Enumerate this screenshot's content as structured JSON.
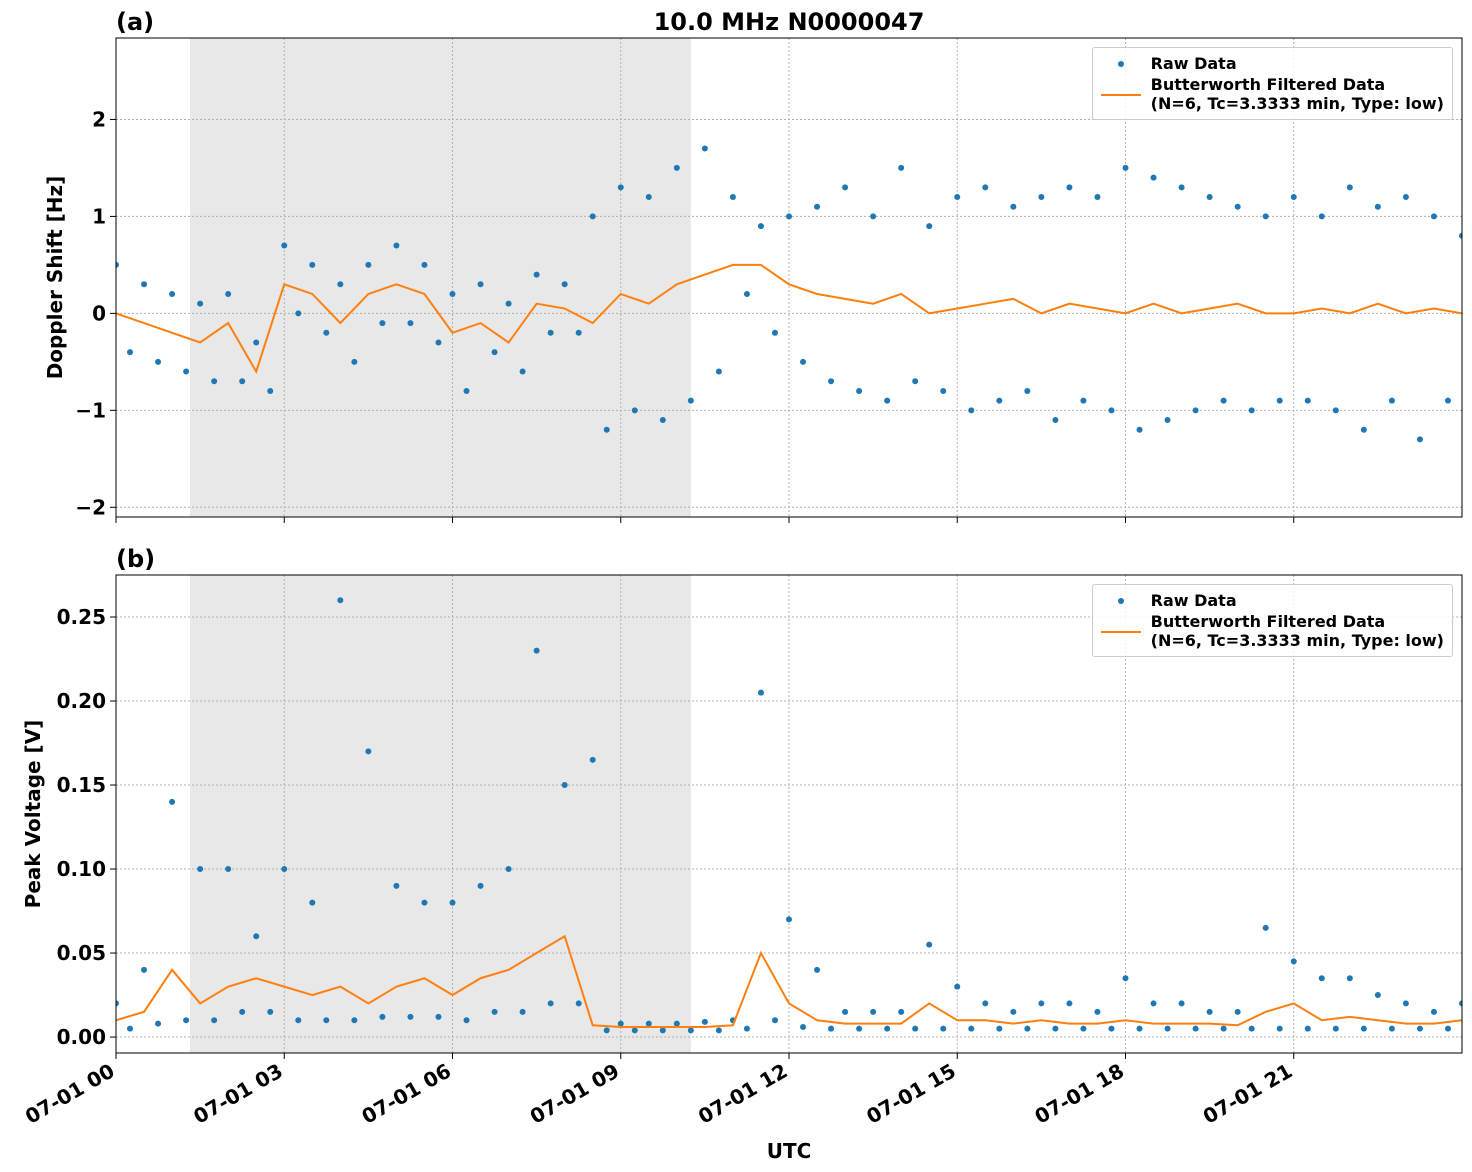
{
  "chart_data": [
    {
      "type": "line",
      "panel_label": "(a)",
      "title": "10.0 MHz N0000047",
      "ylabel": "Doppler Shift [Hz]",
      "xlim": [
        0,
        24
      ],
      "xticks": [
        0,
        3,
        6,
        9,
        12,
        15,
        18,
        21
      ],
      "show_xtick_labels": false,
      "ylim": [
        -2.1,
        2.84
      ],
      "yticks": [
        {
          "value": -2,
          "label": "−2"
        },
        {
          "value": -1,
          "label": "−1"
        },
        0,
        1,
        2
      ],
      "grid": true,
      "legend": "upper right",
      "shaded_xrange": [
        1.32,
        10.25
      ],
      "shade_color": "#e8e8e8",
      "series": [
        {
          "name": "Raw Data",
          "style": "dots",
          "color": "#1f77b4",
          "x": [
            0,
            0.25,
            0.5,
            0.75,
            1,
            1.25,
            1.5,
            1.75,
            2,
            2.25,
            2.5,
            2.75,
            3,
            3.25,
            3.5,
            3.75,
            4,
            4.25,
            4.5,
            4.75,
            5,
            5.25,
            5.5,
            5.75,
            6,
            6.25,
            6.5,
            6.75,
            7,
            7.25,
            7.5,
            7.75,
            8,
            8.25,
            8.5,
            8.75,
            9,
            9.25,
            9.5,
            9.75,
            10,
            10.25,
            10.5,
            10.75,
            11,
            11.25,
            11.5,
            11.75,
            12,
            12.25,
            12.5,
            12.75,
            13,
            13.25,
            13.5,
            13.75,
            14,
            14.25,
            14.5,
            14.75,
            15,
            15.25,
            15.5,
            15.75,
            16,
            16.25,
            16.5,
            16.75,
            17,
            17.25,
            17.5,
            17.75,
            18,
            18.25,
            18.5,
            18.75,
            19,
            19.25,
            19.5,
            19.75,
            20,
            20.25,
            20.5,
            20.75,
            21,
            21.25,
            21.5,
            21.75,
            22,
            22.25,
            22.5,
            22.75,
            23,
            23.25,
            23.5,
            23.75,
            24
          ],
          "values": [
            0.5,
            -0.4,
            0.3,
            -0.5,
            0.2,
            -0.6,
            0.1,
            -0.7,
            0.2,
            -0.7,
            -0.3,
            -0.8,
            0.7,
            0.0,
            0.5,
            -0.2,
            0.3,
            -0.5,
            0.5,
            -0.1,
            0.7,
            -0.1,
            0.5,
            -0.3,
            0.2,
            -0.8,
            0.3,
            -0.4,
            0.1,
            -0.6,
            0.4,
            -0.2,
            0.3,
            -0.2,
            1.0,
            -1.2,
            1.3,
            -1.0,
            1.2,
            -1.1,
            1.5,
            -0.9,
            1.7,
            -0.6,
            1.2,
            0.2,
            0.9,
            -0.2,
            1.0,
            -0.5,
            1.1,
            -0.7,
            1.3,
            -0.8,
            1.0,
            -0.9,
            1.5,
            -0.7,
            0.9,
            -0.8,
            1.2,
            -1.0,
            1.3,
            -0.9,
            1.1,
            -0.8,
            1.2,
            -1.1,
            1.3,
            -0.9,
            1.2,
            -1.0,
            1.5,
            -1.2,
            1.4,
            -1.1,
            1.3,
            -1.0,
            1.2,
            -0.9,
            1.1,
            -1.0,
            1.0,
            -0.9,
            1.2,
            -0.9,
            1.0,
            -1.0,
            1.3,
            -1.2,
            1.1,
            -0.9,
            1.2,
            -1.3,
            1.0,
            -0.9,
            0.8
          ]
        },
        {
          "name": "Butterworth Filtered Data\n(N=6, Tc=3.3333 min, Type: low)",
          "style": "line",
          "color": "#ff7f0e",
          "x": [
            0,
            0.5,
            1,
            1.5,
            2,
            2.5,
            3,
            3.5,
            4,
            4.5,
            5,
            5.5,
            6,
            6.5,
            7,
            7.5,
            8,
            8.5,
            9,
            9.5,
            10,
            10.5,
            11,
            11.5,
            12,
            12.5,
            13,
            13.5,
            14,
            14.5,
            15,
            15.5,
            16,
            16.5,
            17,
            17.5,
            18,
            18.5,
            19,
            19.5,
            20,
            20.5,
            21,
            21.5,
            22,
            22.5,
            23,
            23.5,
            24
          ],
          "values": [
            0.0,
            -0.1,
            -0.2,
            -0.3,
            -0.1,
            -0.6,
            0.3,
            0.2,
            -0.1,
            0.2,
            0.3,
            0.2,
            -0.2,
            -0.1,
            -0.3,
            0.1,
            0.05,
            -0.1,
            0.2,
            0.1,
            0.3,
            0.4,
            0.5,
            0.5,
            0.3,
            0.2,
            0.15,
            0.1,
            0.2,
            0.0,
            0.05,
            0.1,
            0.15,
            0.0,
            0.1,
            0.05,
            0.0,
            0.1,
            0.0,
            0.05,
            0.1,
            0.0,
            0.0,
            0.05,
            0.0,
            0.1,
            0.0,
            0.05,
            0.0
          ]
        }
      ]
    },
    {
      "type": "line",
      "panel_label": "(b)",
      "ylabel": "Peak Voltage [V]",
      "xlabel": "UTC",
      "xlim": [
        0,
        24
      ],
      "xticks": [
        {
          "value": 0,
          "label": "07-01 00"
        },
        {
          "value": 3,
          "label": "07-01 03"
        },
        {
          "value": 6,
          "label": "07-01 06"
        },
        {
          "value": 9,
          "label": "07-01 09"
        },
        {
          "value": 12,
          "label": "07-01 12"
        },
        {
          "value": 15,
          "label": "07-01 15"
        },
        {
          "value": 18,
          "label": "07-01 18"
        },
        {
          "value": 21,
          "label": "07-01 21"
        }
      ],
      "show_xtick_labels": true,
      "ylim": [
        -0.0095,
        0.275
      ],
      "yticks": [
        {
          "value": 0,
          "label": "0.00"
        },
        {
          "value": 0.05,
          "label": "0.05"
        },
        {
          "value": 0.1,
          "label": "0.10"
        },
        {
          "value": 0.15,
          "label": "0.15"
        },
        {
          "value": 0.2,
          "label": "0.20"
        },
        {
          "value": 0.25,
          "label": "0.25"
        }
      ],
      "grid": true,
      "legend": "upper right",
      "shaded_xrange": [
        1.32,
        10.25
      ],
      "shade_color": "#e8e8e8",
      "series": [
        {
          "name": "Raw Data",
          "style": "dots",
          "color": "#1f77b4",
          "x": [
            0,
            0.25,
            0.5,
            0.75,
            1,
            1.25,
            1.5,
            1.75,
            2,
            2.25,
            2.5,
            2.75,
            3,
            3.25,
            3.5,
            3.75,
            4,
            4.25,
            4.5,
            4.75,
            5,
            5.25,
            5.5,
            5.75,
            6,
            6.25,
            6.5,
            6.75,
            7,
            7.25,
            7.5,
            7.75,
            8,
            8.25,
            8.5,
            8.75,
            9,
            9.25,
            9.5,
            9.75,
            10,
            10.25,
            10.5,
            10.75,
            11,
            11.25,
            11.5,
            11.75,
            12,
            12.25,
            12.5,
            12.75,
            13,
            13.25,
            13.5,
            13.75,
            14,
            14.25,
            14.5,
            14.75,
            15,
            15.25,
            15.5,
            15.75,
            16,
            16.25,
            16.5,
            16.75,
            17,
            17.25,
            17.5,
            17.75,
            18,
            18.25,
            18.5,
            18.75,
            19,
            19.25,
            19.5,
            19.75,
            20,
            20.25,
            20.5,
            20.75,
            21,
            21.25,
            21.5,
            21.75,
            22,
            22.25,
            22.5,
            22.75,
            23,
            23.25,
            23.5,
            23.75,
            24
          ],
          "values": [
            0.02,
            0.005,
            0.04,
            0.008,
            0.14,
            0.01,
            0.1,
            0.01,
            0.1,
            0.015,
            0.06,
            0.015,
            0.1,
            0.01,
            0.08,
            0.01,
            0.26,
            0.01,
            0.17,
            0.012,
            0.09,
            0.012,
            0.08,
            0.012,
            0.08,
            0.01,
            0.09,
            0.015,
            0.1,
            0.015,
            0.23,
            0.02,
            0.15,
            0.02,
            0.165,
            0.004,
            0.008,
            0.004,
            0.008,
            0.004,
            0.008,
            0.004,
            0.009,
            0.004,
            0.01,
            0.005,
            0.205,
            0.01,
            0.07,
            0.006,
            0.04,
            0.005,
            0.015,
            0.005,
            0.015,
            0.005,
            0.015,
            0.005,
            0.055,
            0.005,
            0.03,
            0.005,
            0.02,
            0.005,
            0.015,
            0.005,
            0.02,
            0.005,
            0.02,
            0.005,
            0.015,
            0.005,
            0.035,
            0.005,
            0.02,
            0.005,
            0.02,
            0.005,
            0.015,
            0.005,
            0.015,
            0.005,
            0.065,
            0.005,
            0.045,
            0.005,
            0.035,
            0.005,
            0.035,
            0.005,
            0.025,
            0.005,
            0.02,
            0.005,
            0.015,
            0.005,
            0.02
          ]
        },
        {
          "name": "Butterworth Filtered Data\n(N=6, Tc=3.3333 min, Type: low)",
          "style": "line",
          "color": "#ff7f0e",
          "x": [
            0,
            0.5,
            1,
            1.5,
            2,
            2.5,
            3,
            3.5,
            4,
            4.5,
            5,
            5.5,
            6,
            6.5,
            7,
            7.5,
            8,
            8.5,
            9,
            9.5,
            10,
            10.5,
            11,
            11.5,
            12,
            12.5,
            13,
            13.5,
            14,
            14.5,
            15,
            15.5,
            16,
            16.5,
            17,
            17.5,
            18,
            18.5,
            19,
            19.5,
            20,
            20.5,
            21,
            21.5,
            22,
            22.5,
            23,
            23.5,
            24
          ],
          "values": [
            0.01,
            0.015,
            0.04,
            0.02,
            0.03,
            0.035,
            0.03,
            0.025,
            0.03,
            0.02,
            0.03,
            0.035,
            0.025,
            0.035,
            0.04,
            0.05,
            0.06,
            0.007,
            0.006,
            0.006,
            0.006,
            0.006,
            0.007,
            0.05,
            0.02,
            0.01,
            0.008,
            0.008,
            0.008,
            0.02,
            0.01,
            0.01,
            0.008,
            0.01,
            0.008,
            0.008,
            0.01,
            0.008,
            0.008,
            0.008,
            0.007,
            0.015,
            0.02,
            0.01,
            0.012,
            0.01,
            0.008,
            0.008,
            0.01
          ]
        }
      ]
    }
  ]
}
